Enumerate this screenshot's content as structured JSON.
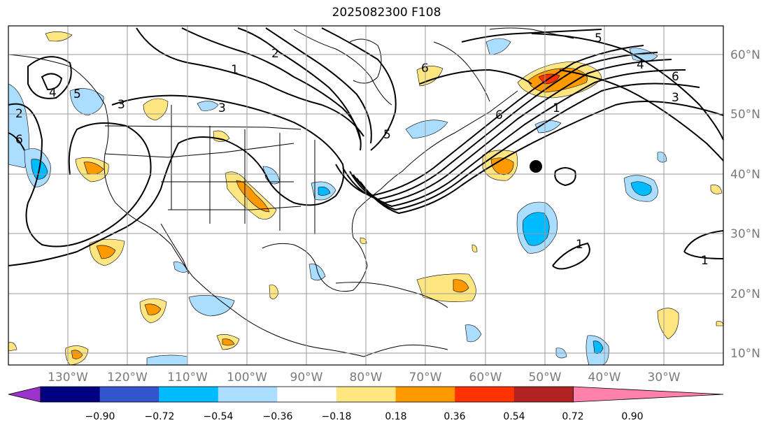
{
  "title": "2025082300 F108",
  "lat_labels": [
    "60°N",
    "50°N",
    "40°N",
    "30°N",
    "20°N",
    "10°N"
  ],
  "lon_labels": [
    "130°W",
    "120°W",
    "110°W",
    "100°W",
    "90°W",
    "80°W",
    "70°W",
    "60°W",
    "50°W",
    "40°W",
    "30°W"
  ],
  "contour_labels": [
    "1",
    "2",
    "3",
    "3",
    "4",
    "5",
    "6",
    "6",
    "4",
    "6",
    "3",
    "1",
    "5",
    "6",
    "5",
    "1",
    "1",
    "2"
  ],
  "colorbar": {
    "colors": [
      "#9933cc",
      "#000080",
      "#3355cc",
      "#00bbff",
      "#aaddff",
      "#ffffff",
      "#ffe680",
      "#ff9900",
      "#ff3300",
      "#b22222",
      "#ff80aa"
    ],
    "labels": [
      "−0.90",
      "−0.72",
      "−0.54",
      "−0.36",
      "−0.18",
      "0.18",
      "0.36",
      "0.54",
      "0.72",
      "0.90"
    ]
  },
  "colors": {
    "neg_light": "#aaddff",
    "neg_mid": "#00bbff",
    "pos_light": "#ffe680",
    "pos_mid": "#ff9900",
    "pos_strong": "#ff3300"
  }
}
